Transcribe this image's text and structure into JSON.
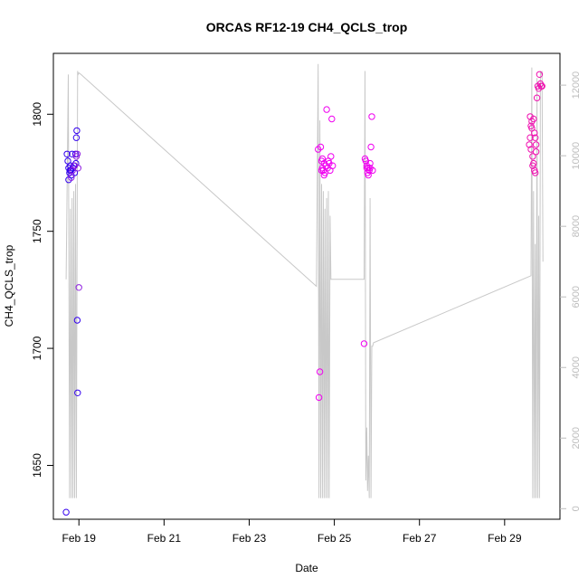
{
  "chart_data": {
    "type": "scatter",
    "title": "ORCAS RF12-19 CH4_QCLS_trop",
    "xlabel": "Date",
    "ylabel": "CH4_QCLS_trop",
    "x_ticks": [
      "Feb 19",
      "Feb 21",
      "Feb 23",
      "Feb 25",
      "Feb 27",
      "Feb 29"
    ],
    "x_tick_days": [
      19,
      21,
      23,
      25,
      27,
      29
    ],
    "xlim": [
      18.4,
      30.3
    ],
    "y_ticks": [
      1650,
      1700,
      1750,
      1800
    ],
    "ylim": [
      1627,
      1826
    ],
    "y2_ticks": [
      0,
      2000,
      4000,
      6000,
      8000,
      10000,
      12000
    ],
    "y2lim": [
      -300,
      12900
    ],
    "grid": false,
    "colors": {
      "blue": "#3300ee",
      "purple": "#8f1de0",
      "magenta": "#f000f0",
      "pink": "#f010b0",
      "altitude": "#c8c8c8",
      "axis": "#000000"
    },
    "series": [
      {
        "x": [
          18.7,
          18.72,
          18.74,
          18.76,
          18.76,
          18.78,
          18.79,
          18.8,
          18.81,
          18.82,
          18.84,
          18.86,
          18.88,
          18.9,
          18.92,
          18.93,
          18.94,
          18.95,
          18.96,
          18.97
        ],
        "y": [
          1630,
          1783,
          1780,
          1772,
          1777,
          1775,
          1776,
          1778,
          1776,
          1774,
          1783,
          1777,
          1778,
          1775,
          1783,
          1779,
          1790,
          1793,
          1712,
          1681
        ],
        "color": "#3300ee"
      },
      {
        "x": [
          18.82,
          18.85,
          18.9,
          18.94,
          18.96,
          18.98,
          19.0
        ],
        "y": [
          1773,
          1776,
          1778,
          1782,
          1783,
          1777,
          1726
        ],
        "color": "#8f1de0"
      },
      {
        "x": [
          24.62,
          24.64,
          24.66,
          24.68,
          24.7,
          24.72,
          24.74,
          24.76,
          24.78,
          24.8,
          24.82,
          24.84,
          24.86,
          24.88,
          24.9,
          24.92,
          24.94,
          24.96,
          24.7,
          24.72,
          24.76
        ],
        "y": [
          1785,
          1679,
          1690,
          1786,
          1780,
          1777,
          1776,
          1779,
          1775,
          1778,
          1802,
          1777,
          1780,
          1779,
          1776,
          1782,
          1798,
          1778,
          1776,
          1781,
          1774
        ],
        "color": "#f000f0"
      },
      {
        "x": [
          25.7,
          25.72,
          25.74,
          25.76,
          25.78,
          25.8,
          25.82,
          25.84,
          25.86,
          25.88,
          25.9,
          25.76,
          25.8,
          25.84
        ],
        "y": [
          1702,
          1781,
          1780,
          1778,
          1775,
          1777,
          1776,
          1779,
          1786,
          1799,
          1776,
          1777,
          1774,
          1777
        ],
        "color": "#f000f0"
      },
      {
        "x": [
          29.58,
          29.6,
          29.62,
          29.64,
          29.66,
          29.68,
          29.7,
          29.72,
          29.74,
          29.76,
          29.78,
          29.8,
          29.82,
          29.84,
          29.86,
          29.88,
          29.62,
          29.66,
          29.7,
          29.74,
          29.6,
          29.64,
          29.68,
          29.72
        ],
        "y": [
          1787,
          1799,
          1785,
          1794,
          1778,
          1798,
          1776,
          1790,
          1787,
          1807,
          1812,
          1811,
          1817,
          1813,
          1812,
          1812,
          1795,
          1782,
          1792,
          1784,
          1790,
          1797,
          1779,
          1775
        ],
        "color": "#f010b0"
      }
    ],
    "altitude": {
      "axis": "right",
      "color": "#c8c8c8",
      "x": [
        18.7,
        18.75,
        18.78,
        18.8,
        18.82,
        18.84,
        18.86,
        18.88,
        18.9,
        18.92,
        18.94,
        18.96,
        18.97,
        18.98,
        19.0,
        19.05,
        24.58,
        24.62,
        24.64,
        24.66,
        24.68,
        24.7,
        24.72,
        24.74,
        24.76,
        24.78,
        24.8,
        24.82,
        24.84,
        24.86,
        24.88,
        24.9,
        24.92,
        24.95,
        25.7,
        25.72,
        25.74,
        25.76,
        25.78,
        25.8,
        25.82,
        25.84,
        25.86,
        25.88,
        25.9,
        25.92,
        29.62,
        29.64,
        29.66,
        29.68,
        29.7,
        29.72,
        29.74,
        29.76,
        29.78,
        29.8,
        29.82,
        29.84,
        29.86,
        29.88,
        29.9
      ],
      "y": [
        6500,
        12300,
        300,
        8500,
        300,
        8800,
        300,
        9000,
        300,
        9200,
        300,
        9300,
        12400,
        12300,
        12350,
        12300,
        6300,
        12600,
        300,
        11000,
        300,
        9200,
        300,
        9000,
        300,
        8500,
        300,
        8800,
        300,
        9000,
        300,
        8300,
        6500,
        6500,
        6500,
        12400,
        800,
        2300,
        500,
        1500,
        300,
        8800,
        300,
        4600,
        4600,
        4700,
        6600,
        12500,
        300,
        9000,
        300,
        7500,
        300,
        12200,
        300,
        8300,
        300,
        12400,
        12300,
        12400,
        7000
      ]
    }
  }
}
